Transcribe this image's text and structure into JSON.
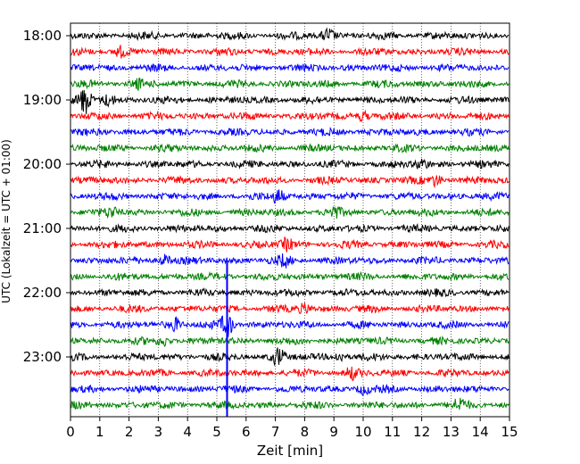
{
  "chart_data": {
    "type": "line",
    "title": "",
    "xlabel": "Zeit  [min]",
    "ylabel": "UTC (Lokalzeit = UTC + 01:00)",
    "xlim": [
      0,
      15
    ],
    "x_ticks": [
      0,
      1,
      2,
      3,
      4,
      5,
      6,
      7,
      8,
      9,
      10,
      11,
      12,
      13,
      14,
      15
    ],
    "x_tick_labels": [
      "0",
      "1",
      "2",
      "3",
      "4",
      "5",
      "6",
      "7",
      "8",
      "9",
      "10",
      "11",
      "12",
      "13",
      "14",
      "15"
    ],
    "y_tick_labels": [
      "18:00",
      "19:00",
      "20:00",
      "21:00",
      "22:00",
      "23:00"
    ],
    "trace_colors": [
      "#000000",
      "#ff0000",
      "#0000ff",
      "#008000"
    ],
    "grid": "vertical dotted",
    "traces": [
      {
        "time": "18:00",
        "color": "#000000",
        "events": [
          {
            "x": 8.8,
            "amp": 0.7
          }
        ]
      },
      {
        "time": "18:15",
        "color": "#ff0000",
        "events": [
          {
            "x": 1.7,
            "amp": 0.5
          }
        ]
      },
      {
        "time": "18:30",
        "color": "#0000ff",
        "events": []
      },
      {
        "time": "18:45",
        "color": "#008000",
        "events": [
          {
            "x": 2.3,
            "amp": 0.4
          }
        ]
      },
      {
        "time": "19:00",
        "color": "#000000",
        "events": [
          {
            "x": 0.5,
            "amp": 1.4
          },
          {
            "x": 1.3,
            "amp": 0.6
          }
        ]
      },
      {
        "time": "19:15",
        "color": "#ff0000",
        "events": [
          {
            "x": 10,
            "amp": 0.5
          }
        ]
      },
      {
        "time": "19:30",
        "color": "#0000ff",
        "events": []
      },
      {
        "time": "19:45",
        "color": "#008000",
        "events": []
      },
      {
        "time": "20:00",
        "color": "#000000",
        "events": [
          {
            "x": 12,
            "amp": 0.5
          }
        ]
      },
      {
        "time": "20:15",
        "color": "#ff0000",
        "events": [
          {
            "x": 12.5,
            "amp": 0.6
          }
        ]
      },
      {
        "time": "20:30",
        "color": "#0000ff",
        "events": [
          {
            "x": 7.1,
            "amp": 0.8
          }
        ]
      },
      {
        "time": "20:45",
        "color": "#008000",
        "events": [
          {
            "x": 1.4,
            "amp": 0.5
          },
          {
            "x": 9,
            "amp": 0.5
          }
        ]
      },
      {
        "time": "21:00",
        "color": "#000000",
        "events": []
      },
      {
        "time": "21:15",
        "color": "#ff0000",
        "events": [
          {
            "x": 7.4,
            "amp": 0.6
          }
        ]
      },
      {
        "time": "21:30",
        "color": "#0000ff",
        "events": [
          {
            "x": 3.2,
            "amp": 0.6
          },
          {
            "x": 7.3,
            "amp": 0.5
          }
        ]
      },
      {
        "time": "21:45",
        "color": "#008000",
        "events": []
      },
      {
        "time": "22:00",
        "color": "#000000",
        "events": []
      },
      {
        "time": "22:15",
        "color": "#ff0000",
        "events": [
          {
            "x": 8,
            "amp": 0.5
          }
        ]
      },
      {
        "time": "22:30",
        "color": "#0000ff",
        "events": [
          {
            "x": 3.6,
            "amp": 0.7
          },
          {
            "x": 5.35,
            "amp": 1.3
          }
        ]
      },
      {
        "time": "22:45",
        "color": "#008000",
        "events": [
          {
            "x": 3.2,
            "amp": 0.5
          }
        ]
      },
      {
        "time": "23:00",
        "color": "#000000",
        "events": [
          {
            "x": 7.1,
            "amp": 0.9
          },
          {
            "x": 9.2,
            "amp": 0.5
          }
        ]
      },
      {
        "time": "23:15",
        "color": "#ff0000",
        "events": [
          {
            "x": 9.6,
            "amp": 0.6
          }
        ]
      },
      {
        "time": "23:30",
        "color": "#0000ff",
        "events": [
          {
            "x": 10,
            "amp": 0.5
          }
        ]
      },
      {
        "time": "23:45",
        "color": "#008000",
        "events": [
          {
            "x": 13.3,
            "amp": 0.6
          }
        ]
      }
    ],
    "spike": {
      "x": 5.35,
      "from": "21:30",
      "to": "23:45",
      "color": "#0000ff"
    }
  }
}
